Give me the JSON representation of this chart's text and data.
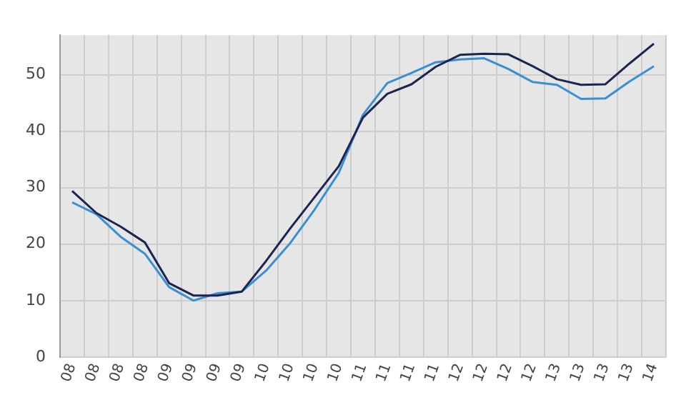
{
  "chart_data": {
    "type": "line",
    "categories": [
      "08",
      "08",
      "08",
      "08",
      "09",
      "09",
      "09",
      "09",
      "10",
      "10",
      "10",
      "10",
      "11",
      "11",
      "11",
      "11",
      "12",
      "12",
      "12",
      "12",
      "13",
      "13",
      "13",
      "13",
      "14"
    ],
    "series": [
      {
        "color": "#1b2452",
        "values": [
          29.4,
          25.5,
          23.1,
          20.3,
          13.1,
          10.9,
          10.9,
          11.6,
          17,
          22.8,
          28.3,
          33.8,
          42.4,
          46.6,
          48.3,
          51.4,
          53.5,
          53.7,
          53.6,
          51.5,
          49.2,
          48.2,
          48.3,
          52,
          55.5
        ]
      },
      {
        "color": "#3a8fd0",
        "values": [
          27.4,
          25.3,
          21.3,
          18.3,
          12.4,
          10,
          11.3,
          11.6,
          15.3,
          20.2,
          26.1,
          32.6,
          42.9,
          48.5,
          50.3,
          52.2,
          52.7,
          52.9,
          51,
          48.7,
          48.2,
          45.7,
          45.8,
          48.8,
          51.5
        ]
      }
    ],
    "ylim": [
      0,
      57
    ],
    "yticks": [
      0,
      10,
      20,
      30,
      40,
      50
    ],
    "grid": true,
    "legend": false,
    "marker": "none",
    "line_style": "solid"
  }
}
